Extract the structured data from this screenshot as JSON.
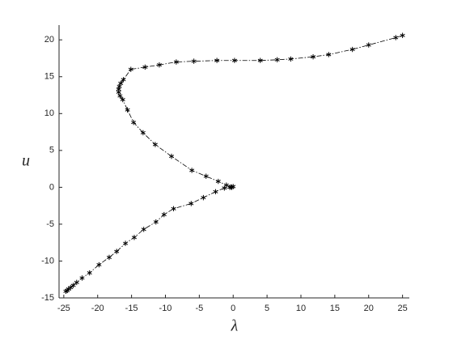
{
  "chart_data": {
    "type": "line",
    "x_label": "λ",
    "y_label": "u",
    "xlim": [
      -25.7,
      26
    ],
    "ylim": [
      -15,
      22
    ],
    "xticks": [
      -25,
      -20,
      -15,
      -10,
      -5,
      0,
      5,
      10,
      15,
      20,
      25
    ],
    "yticks": [
      -15,
      -10,
      -5,
      0,
      5,
      10,
      15,
      20
    ],
    "grid": false,
    "series": [
      {
        "color": "#000000",
        "x": [
          -24.7,
          -24.5,
          -24.3,
          -24.0,
          -23.6,
          -23.1,
          -22.3,
          -21.2,
          -19.8,
          -18.3,
          -17.2,
          -15.9,
          -14.6,
          -13.2,
          -11.4,
          -10.2,
          -8.8,
          -6.2,
          -4.4,
          -2.6,
          -1.3,
          -0.5,
          -0.2,
          0,
          -0.3,
          -1.0,
          -2.2,
          -4.0,
          -6.1,
          -9.1,
          -11.5,
          -13.3,
          -14.7,
          -15.6,
          -16.3,
          -16.7,
          -16.9,
          -16.9,
          -16.8,
          -16.6,
          -16.2,
          -15.1,
          -13.0,
          -10.9,
          -8.4,
          -5.8,
          -2.4,
          0.2,
          4.0,
          6.5,
          8.5,
          11.8,
          14.1,
          17.6,
          20.0,
          24.0,
          25.0
        ],
        "values": [
          -14.1,
          -14.0,
          -13.8,
          -13.6,
          -13.3,
          -12.9,
          -12.3,
          -11.6,
          -10.5,
          -9.5,
          -8.7,
          -7.6,
          -6.8,
          -5.7,
          -4.7,
          -3.7,
          -2.9,
          -2.2,
          -1.4,
          -0.6,
          -0.1,
          0,
          0,
          0.1,
          0.05,
          0.3,
          0.8,
          1.5,
          2.3,
          4.2,
          5.8,
          7.4,
          8.8,
          10.5,
          11.9,
          12.4,
          12.9,
          13.3,
          13.7,
          14.1,
          14.6,
          16.0,
          16.3,
          16.6,
          17.0,
          17.1,
          17.2,
          17.2,
          17.2,
          17.3,
          17.4,
          17.7,
          18.0,
          18.7,
          19.3,
          20.3,
          20.6
        ]
      }
    ]
  }
}
